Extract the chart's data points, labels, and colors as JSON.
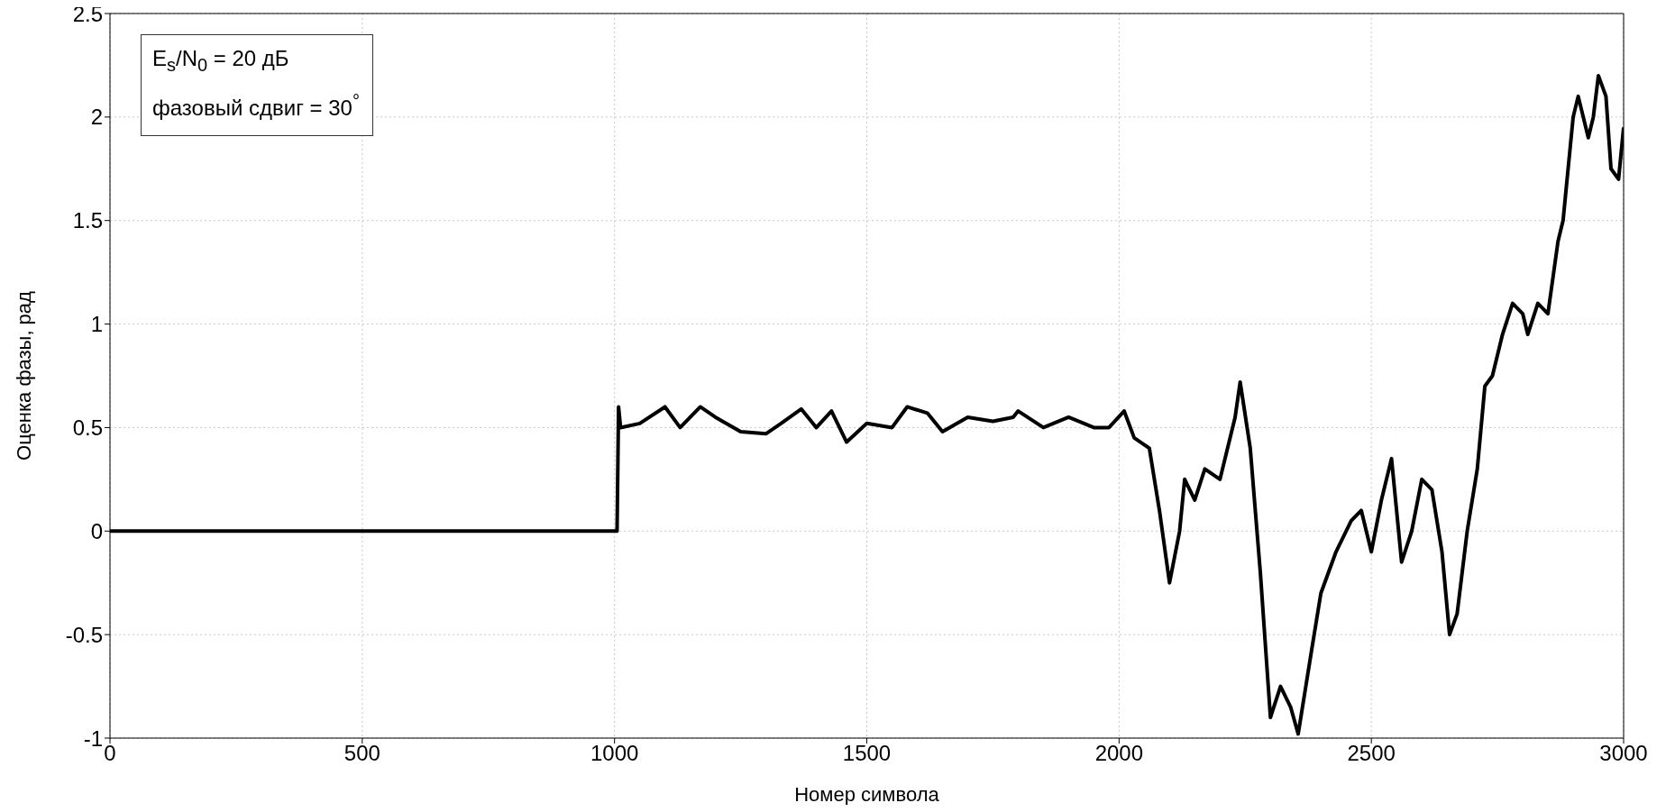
{
  "chart_data": {
    "type": "line",
    "xlabel": "Номер символа",
    "ylabel": "Оценка фазы, рад",
    "annotations": [
      "E$_{s}$/N$_{0}$ = 20 дБ",
      "фазовый сдвиг = 30$^{°}$"
    ],
    "x": [
      0,
      1000,
      1005,
      1008,
      1012,
      1050,
      1100,
      1130,
      1170,
      1200,
      1250,
      1300,
      1330,
      1370,
      1400,
      1430,
      1460,
      1500,
      1550,
      1580,
      1620,
      1650,
      1700,
      1750,
      1790,
      1800,
      1850,
      1900,
      1950,
      1980,
      2010,
      2030,
      2060,
      2080,
      2100,
      2120,
      2130,
      2150,
      2170,
      2200,
      2230,
      2240,
      2260,
      2280,
      2300,
      2320,
      2340,
      2355,
      2380,
      2400,
      2430,
      2460,
      2480,
      2500,
      2520,
      2540,
      2560,
      2580,
      2600,
      2620,
      2640,
      2655,
      2670,
      2690,
      2710,
      2725,
      2740,
      2760,
      2780,
      2800,
      2810,
      2830,
      2850,
      2870,
      2880,
      2900,
      2910,
      2930,
      2940,
      2950,
      2965,
      2975,
      2990,
      3000
    ],
    "series": [
      {
        "color": "#000000",
        "values": [
          0,
          0,
          0,
          0.6,
          0.5,
          0.52,
          0.6,
          0.5,
          0.6,
          0.55,
          0.48,
          0.47,
          0.52,
          0.59,
          0.5,
          0.58,
          0.43,
          0.52,
          0.5,
          0.6,
          0.57,
          0.48,
          0.55,
          0.53,
          0.55,
          0.58,
          0.5,
          0.55,
          0.5,
          0.5,
          0.58,
          0.45,
          0.4,
          0.1,
          -0.25,
          0,
          0.25,
          0.15,
          0.3,
          0.25,
          0.55,
          0.72,
          0.4,
          -0.2,
          -0.9,
          -0.75,
          -0.85,
          -0.98,
          -0.6,
          -0.3,
          -0.1,
          0.05,
          0.1,
          -0.1,
          0.15,
          0.35,
          -0.15,
          0,
          0.25,
          0.2,
          -0.1,
          -0.5,
          -0.4,
          0,
          0.3,
          0.7,
          0.75,
          0.95,
          1.1,
          1.05,
          0.95,
          1.1,
          1.05,
          1.4,
          1.5,
          2,
          2.1,
          1.9,
          2,
          2.2,
          2.1,
          1.75,
          1.7,
          1.95
        ]
      }
    ],
    "xlim": [
      0,
      3000
    ],
    "xticks": [
      0,
      500,
      1000,
      1500,
      2000,
      2500,
      3000
    ],
    "ylim": [
      -1,
      2.5
    ],
    "yticks": [
      -1,
      -0.5,
      0,
      0.5,
      1,
      1.5,
      2,
      2.5
    ],
    "grid": true,
    "legend": false,
    "line_style": "solid"
  }
}
